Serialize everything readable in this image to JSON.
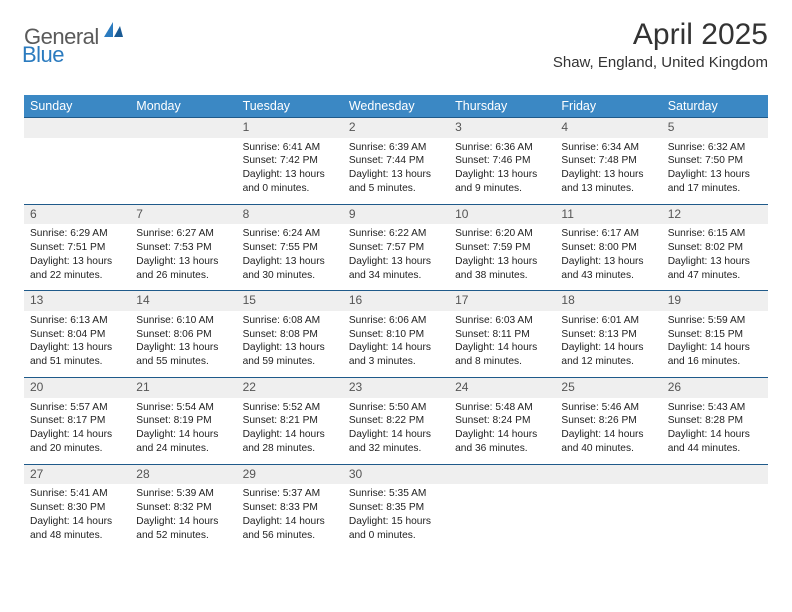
{
  "logo": {
    "general": "General",
    "blue": "Blue"
  },
  "title": "April 2025",
  "location": "Shaw, England, United Kingdom",
  "colors": {
    "header_bg": "#3b88c4",
    "header_text": "#ffffff",
    "row_border": "#1f5a8a",
    "daynum_bg": "#efefef",
    "body_text": "#222222"
  },
  "weekdays": [
    "Sunday",
    "Monday",
    "Tuesday",
    "Wednesday",
    "Thursday",
    "Friday",
    "Saturday"
  ],
  "weeks": [
    [
      null,
      null,
      {
        "n": "1",
        "sr": "6:41 AM",
        "ss": "7:42 PM",
        "dl": "13 hours and 0 minutes."
      },
      {
        "n": "2",
        "sr": "6:39 AM",
        "ss": "7:44 PM",
        "dl": "13 hours and 5 minutes."
      },
      {
        "n": "3",
        "sr": "6:36 AM",
        "ss": "7:46 PM",
        "dl": "13 hours and 9 minutes."
      },
      {
        "n": "4",
        "sr": "6:34 AM",
        "ss": "7:48 PM",
        "dl": "13 hours and 13 minutes."
      },
      {
        "n": "5",
        "sr": "6:32 AM",
        "ss": "7:50 PM",
        "dl": "13 hours and 17 minutes."
      }
    ],
    [
      {
        "n": "6",
        "sr": "6:29 AM",
        "ss": "7:51 PM",
        "dl": "13 hours and 22 minutes."
      },
      {
        "n": "7",
        "sr": "6:27 AM",
        "ss": "7:53 PM",
        "dl": "13 hours and 26 minutes."
      },
      {
        "n": "8",
        "sr": "6:24 AM",
        "ss": "7:55 PM",
        "dl": "13 hours and 30 minutes."
      },
      {
        "n": "9",
        "sr": "6:22 AM",
        "ss": "7:57 PM",
        "dl": "13 hours and 34 minutes."
      },
      {
        "n": "10",
        "sr": "6:20 AM",
        "ss": "7:59 PM",
        "dl": "13 hours and 38 minutes."
      },
      {
        "n": "11",
        "sr": "6:17 AM",
        "ss": "8:00 PM",
        "dl": "13 hours and 43 minutes."
      },
      {
        "n": "12",
        "sr": "6:15 AM",
        "ss": "8:02 PM",
        "dl": "13 hours and 47 minutes."
      }
    ],
    [
      {
        "n": "13",
        "sr": "6:13 AM",
        "ss": "8:04 PM",
        "dl": "13 hours and 51 minutes."
      },
      {
        "n": "14",
        "sr": "6:10 AM",
        "ss": "8:06 PM",
        "dl": "13 hours and 55 minutes."
      },
      {
        "n": "15",
        "sr": "6:08 AM",
        "ss": "8:08 PM",
        "dl": "13 hours and 59 minutes."
      },
      {
        "n": "16",
        "sr": "6:06 AM",
        "ss": "8:10 PM",
        "dl": "14 hours and 3 minutes."
      },
      {
        "n": "17",
        "sr": "6:03 AM",
        "ss": "8:11 PM",
        "dl": "14 hours and 8 minutes."
      },
      {
        "n": "18",
        "sr": "6:01 AM",
        "ss": "8:13 PM",
        "dl": "14 hours and 12 minutes."
      },
      {
        "n": "19",
        "sr": "5:59 AM",
        "ss": "8:15 PM",
        "dl": "14 hours and 16 minutes."
      }
    ],
    [
      {
        "n": "20",
        "sr": "5:57 AM",
        "ss": "8:17 PM",
        "dl": "14 hours and 20 minutes."
      },
      {
        "n": "21",
        "sr": "5:54 AM",
        "ss": "8:19 PM",
        "dl": "14 hours and 24 minutes."
      },
      {
        "n": "22",
        "sr": "5:52 AM",
        "ss": "8:21 PM",
        "dl": "14 hours and 28 minutes."
      },
      {
        "n": "23",
        "sr": "5:50 AM",
        "ss": "8:22 PM",
        "dl": "14 hours and 32 minutes."
      },
      {
        "n": "24",
        "sr": "5:48 AM",
        "ss": "8:24 PM",
        "dl": "14 hours and 36 minutes."
      },
      {
        "n": "25",
        "sr": "5:46 AM",
        "ss": "8:26 PM",
        "dl": "14 hours and 40 minutes."
      },
      {
        "n": "26",
        "sr": "5:43 AM",
        "ss": "8:28 PM",
        "dl": "14 hours and 44 minutes."
      }
    ],
    [
      {
        "n": "27",
        "sr": "5:41 AM",
        "ss": "8:30 PM",
        "dl": "14 hours and 48 minutes."
      },
      {
        "n": "28",
        "sr": "5:39 AM",
        "ss": "8:32 PM",
        "dl": "14 hours and 52 minutes."
      },
      {
        "n": "29",
        "sr": "5:37 AM",
        "ss": "8:33 PM",
        "dl": "14 hours and 56 minutes."
      },
      {
        "n": "30",
        "sr": "5:35 AM",
        "ss": "8:35 PM",
        "dl": "15 hours and 0 minutes."
      },
      null,
      null,
      null
    ]
  ],
  "labels": {
    "sunrise": "Sunrise:",
    "sunset": "Sunset:",
    "daylight": "Daylight:"
  }
}
